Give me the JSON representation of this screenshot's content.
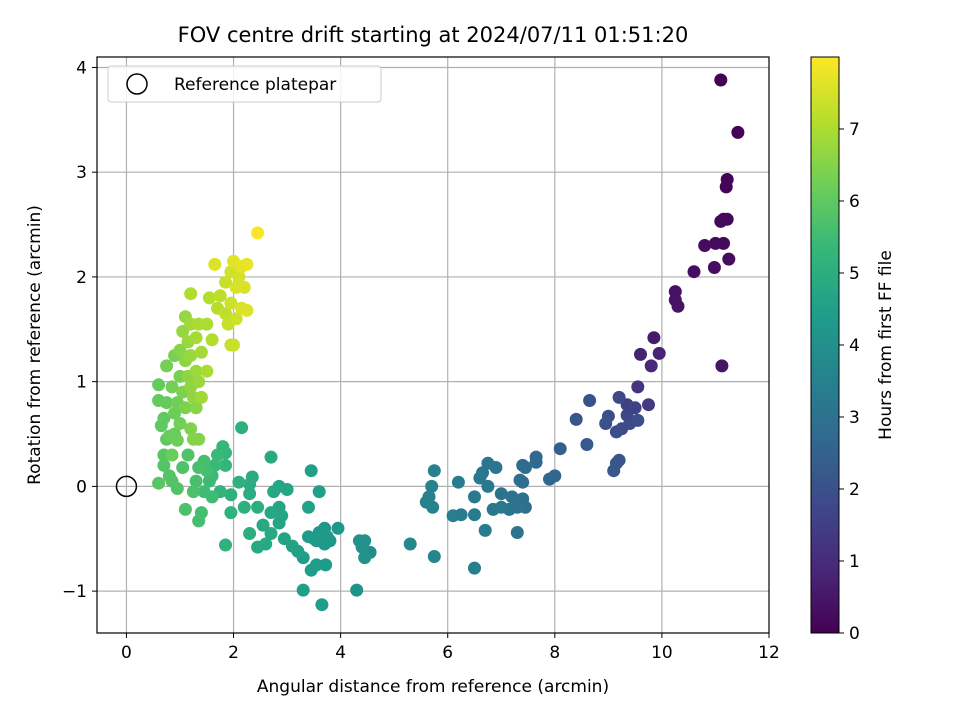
{
  "chart_data": {
    "type": "scatter",
    "title": "FOV centre drift starting at 2024/07/11 01:51:20",
    "xlabel": "Angular distance from reference (arcmin)",
    "ylabel": "Rotation from reference (arcmin)",
    "xlim": [
      -0.55,
      12.0
    ],
    "ylim": [
      -1.4,
      4.1
    ],
    "xticks": [
      0,
      2,
      4,
      6,
      8,
      10,
      12
    ],
    "xtick_labels": [
      "0",
      "2",
      "4",
      "6",
      "8",
      "10",
      "12"
    ],
    "yticks": [
      -1,
      0,
      1,
      2,
      3,
      4
    ],
    "ytick_labels": [
      "−1",
      "0",
      "1",
      "2",
      "3",
      "4"
    ],
    "grid": true,
    "legend": {
      "placement": "top-left",
      "entries": [
        {
          "label": "Reference platepar",
          "marker": "open-circle"
        }
      ]
    },
    "reference_point": {
      "x": 0,
      "y": 0
    },
    "colorbar": {
      "label": "Hours from first FF file",
      "colormap": "viridis",
      "range": [
        0,
        8.0
      ],
      "ticks": [
        0,
        1,
        2,
        3,
        4,
        5,
        6,
        7
      ],
      "tick_labels": [
        "0",
        "1",
        "2",
        "3",
        "4",
        "5",
        "6",
        "7"
      ]
    },
    "colormap_stops": [
      "#440154",
      "#482878",
      "#3e4989",
      "#31688e",
      "#26828e",
      "#1f9e89",
      "#35b779",
      "#6ece58",
      "#b5de2b",
      "#fde725"
    ],
    "points": [
      [
        11.1,
        3.88,
        0.02
      ],
      [
        11.42,
        3.38,
        0.05
      ],
      [
        11.22,
        2.93,
        0.08
      ],
      [
        11.2,
        2.86,
        0.1
      ],
      [
        11.15,
        2.55,
        0.13
      ],
      [
        11.22,
        2.55,
        0.15
      ],
      [
        11.1,
        2.53,
        0.18
      ],
      [
        11.15,
        2.32,
        0.2
      ],
      [
        11.0,
        2.32,
        0.23
      ],
      [
        10.8,
        2.3,
        0.26
      ],
      [
        11.25,
        2.17,
        0.28
      ],
      [
        10.98,
        2.09,
        0.3
      ],
      [
        10.6,
        2.05,
        0.33
      ],
      [
        10.25,
        1.86,
        0.36
      ],
      [
        10.25,
        1.78,
        0.4
      ],
      [
        10.3,
        1.72,
        0.42
      ],
      [
        11.12,
        1.15,
        0.45
      ],
      [
        9.85,
        1.42,
        0.6
      ],
      [
        9.6,
        1.26,
        0.75
      ],
      [
        9.95,
        1.27,
        0.8
      ],
      [
        9.8,
        1.15,
        0.9
      ],
      [
        9.55,
        0.95,
        1.2
      ],
      [
        9.75,
        0.78,
        1.4
      ],
      [
        9.35,
        0.78,
        1.5
      ],
      [
        9.5,
        0.75,
        1.6
      ],
      [
        9.35,
        0.68,
        1.7
      ],
      [
        9.4,
        0.6,
        1.8
      ],
      [
        9.25,
        0.55,
        1.85
      ],
      [
        9.15,
        0.52,
        1.9
      ],
      [
        9.55,
        0.63,
        1.95
      ],
      [
        9.2,
        0.85,
        1.75
      ],
      [
        9.0,
        0.67,
        1.9
      ],
      [
        8.95,
        0.6,
        2.0
      ],
      [
        8.65,
        0.82,
        2.05
      ],
      [
        8.4,
        0.64,
        2.15
      ],
      [
        8.6,
        0.4,
        2.25
      ],
      [
        9.15,
        0.22,
        2.1
      ],
      [
        9.2,
        0.25,
        2.15
      ],
      [
        9.1,
        0.15,
        2.2
      ],
      [
        8.1,
        0.36,
        2.4
      ],
      [
        8.0,
        0.1,
        2.6
      ],
      [
        7.9,
        0.07,
        2.65
      ],
      [
        7.65,
        0.28,
        2.7
      ],
      [
        7.65,
        0.23,
        2.75
      ],
      [
        7.45,
        0.18,
        2.8
      ],
      [
        7.4,
        0.2,
        2.85
      ],
      [
        7.4,
        0.04,
        2.9
      ],
      [
        7.35,
        0.06,
        2.9
      ],
      [
        7.4,
        -0.12,
        2.95
      ],
      [
        7.45,
        -0.2,
        2.95
      ],
      [
        7.3,
        -0.2,
        3.0
      ],
      [
        7.2,
        -0.1,
        3.0
      ],
      [
        7.0,
        -0.07,
        3.05
      ],
      [
        7.15,
        -0.22,
        3.05
      ],
      [
        7.3,
        -0.44,
        3.05
      ],
      [
        6.9,
        0.18,
        3.1
      ],
      [
        6.75,
        0.22,
        3.15
      ],
      [
        6.65,
        0.13,
        3.15
      ],
      [
        6.6,
        0.08,
        3.2
      ],
      [
        6.75,
        0.0,
        3.2
      ],
      [
        6.85,
        -0.22,
        3.2
      ],
      [
        7.0,
        -0.2,
        3.25
      ],
      [
        6.5,
        -0.1,
        3.25
      ],
      [
        6.5,
        -0.27,
        3.3
      ],
      [
        6.7,
        -0.42,
        3.3
      ],
      [
        6.2,
        0.04,
        3.35
      ],
      [
        6.25,
        -0.27,
        3.35
      ],
      [
        6.1,
        -0.28,
        3.4
      ],
      [
        6.5,
        -0.78,
        3.45
      ],
      [
        5.75,
        0.15,
        3.5
      ],
      [
        5.7,
        0.0,
        3.55
      ],
      [
        5.65,
        -0.1,
        3.55
      ],
      [
        5.6,
        -0.15,
        3.6
      ],
      [
        5.72,
        -0.2,
        3.6
      ],
      [
        5.75,
        -0.67,
        3.65
      ],
      [
        5.3,
        -0.55,
        3.75
      ],
      [
        4.55,
        -0.63,
        3.9
      ],
      [
        4.45,
        -0.52,
        4.0
      ],
      [
        4.35,
        -0.52,
        4.05
      ],
      [
        4.4,
        -0.58,
        4.05
      ],
      [
        4.45,
        -0.68,
        4.1
      ],
      [
        4.3,
        -0.99,
        4.1
      ],
      [
        3.95,
        -0.4,
        4.2
      ],
      [
        3.7,
        -0.4,
        4.2
      ],
      [
        3.75,
        -0.48,
        4.25
      ],
      [
        3.8,
        -0.52,
        4.25
      ],
      [
        3.6,
        -0.44,
        4.3
      ],
      [
        3.55,
        -0.52,
        4.3
      ],
      [
        3.7,
        -0.55,
        4.3
      ],
      [
        3.5,
        -0.5,
        4.35
      ],
      [
        3.4,
        -0.48,
        4.35
      ],
      [
        3.72,
        -0.75,
        4.35
      ],
      [
        3.55,
        -0.75,
        4.4
      ],
      [
        3.45,
        -0.8,
        4.4
      ],
      [
        3.65,
        -1.13,
        4.45
      ],
      [
        3.3,
        -0.68,
        4.45
      ],
      [
        3.3,
        -0.99,
        4.5
      ],
      [
        3.6,
        -0.05,
        4.5
      ],
      [
        3.45,
        0.15,
        4.5
      ],
      [
        3.4,
        -0.2,
        4.55
      ],
      [
        3.2,
        -0.62,
        4.55
      ],
      [
        3.1,
        -0.57,
        4.6
      ],
      [
        2.95,
        -0.5,
        4.65
      ],
      [
        2.85,
        -0.35,
        4.65
      ],
      [
        2.9,
        -0.28,
        4.7
      ],
      [
        2.85,
        -0.2,
        4.7
      ],
      [
        3.0,
        -0.03,
        4.7
      ],
      [
        2.85,
        0.0,
        4.7
      ],
      [
        2.75,
        -0.05,
        4.75
      ],
      [
        2.7,
        -0.25,
        4.75
      ],
      [
        2.7,
        -0.45,
        4.8
      ],
      [
        2.55,
        -0.37,
        4.8
      ],
      [
        2.6,
        -0.55,
        4.8
      ],
      [
        2.45,
        -0.58,
        4.85
      ],
      [
        2.7,
        0.28,
        4.85
      ],
      [
        2.35,
        0.09,
        4.9
      ],
      [
        2.3,
        0.02,
        4.95
      ],
      [
        2.3,
        -0.07,
        4.95
      ],
      [
        2.45,
        -0.2,
        5.0
      ],
      [
        2.3,
        -0.45,
        5.0
      ],
      [
        2.2,
        -0.2,
        5.05
      ],
      [
        2.15,
        0.56,
        5.05
      ],
      [
        2.1,
        0.04,
        5.1
      ],
      [
        1.95,
        -0.08,
        5.1
      ],
      [
        1.95,
        -0.25,
        5.15
      ],
      [
        1.85,
        -0.56,
        5.15
      ],
      [
        1.75,
        -0.05,
        5.2
      ],
      [
        1.85,
        0.2,
        5.25
      ],
      [
        1.85,
        0.32,
        5.3
      ],
      [
        1.8,
        0.38,
        5.35
      ],
      [
        1.7,
        0.3,
        5.4
      ],
      [
        1.65,
        0.2,
        5.4
      ],
      [
        1.6,
        0.1,
        5.45
      ],
      [
        1.55,
        0.05,
        5.45
      ],
      [
        1.6,
        -0.1,
        5.5
      ],
      [
        1.45,
        -0.05,
        5.5
      ],
      [
        1.5,
        0.15,
        5.55
      ],
      [
        1.45,
        0.24,
        5.6
      ],
      [
        1.4,
        -0.25,
        5.6
      ],
      [
        1.35,
        -0.33,
        5.6
      ],
      [
        1.35,
        0.18,
        5.65
      ],
      [
        1.3,
        0.05,
        5.65
      ],
      [
        1.25,
        -0.05,
        5.7
      ],
      [
        1.1,
        -0.22,
        5.7
      ],
      [
        1.15,
        0.3,
        5.75
      ],
      [
        1.05,
        0.18,
        5.75
      ],
      [
        0.95,
        -0.02,
        5.8
      ],
      [
        0.85,
        0.05,
        5.8
      ],
      [
        0.8,
        0.1,
        5.85
      ],
      [
        0.7,
        0.2,
        5.85
      ],
      [
        0.6,
        0.03,
        5.9
      ],
      [
        0.7,
        0.3,
        5.9
      ],
      [
        0.75,
        0.45,
        5.95
      ],
      [
        0.65,
        0.58,
        6.0
      ],
      [
        0.7,
        0.65,
        6.0
      ],
      [
        0.6,
        0.82,
        6.05
      ],
      [
        0.6,
        0.97,
        6.05
      ],
      [
        0.75,
        0.8,
        6.1
      ],
      [
        0.9,
        0.5,
        6.1
      ],
      [
        0.85,
        0.3,
        6.15
      ],
      [
        0.8,
        0.48,
        6.15
      ],
      [
        0.95,
        0.44,
        6.2
      ],
      [
        0.9,
        0.7,
        6.2
      ],
      [
        1.0,
        0.6,
        6.25
      ],
      [
        0.95,
        0.8,
        6.25
      ],
      [
        0.85,
        0.95,
        6.3
      ],
      [
        0.75,
        1.15,
        6.3
      ],
      [
        0.9,
        1.25,
        6.35
      ],
      [
        1.0,
        1.05,
        6.35
      ],
      [
        1.05,
        0.9,
        6.4
      ],
      [
        1.1,
        0.75,
        6.4
      ],
      [
        1.2,
        0.55,
        6.45
      ],
      [
        1.25,
        0.45,
        6.5
      ],
      [
        1.35,
        0.45,
        6.5
      ],
      [
        1.3,
        0.75,
        6.55
      ],
      [
        1.0,
        1.3,
        6.55
      ],
      [
        1.1,
        1.2,
        6.6
      ],
      [
        1.15,
        1.05,
        6.6
      ],
      [
        1.2,
        0.95,
        6.65
      ],
      [
        1.25,
        0.85,
        6.65
      ],
      [
        1.05,
        1.48,
        6.7
      ],
      [
        1.1,
        1.62,
        6.7
      ],
      [
        1.15,
        1.38,
        6.75
      ],
      [
        1.2,
        1.25,
        6.75
      ],
      [
        1.3,
        1.1,
        6.8
      ],
      [
        1.35,
        1.0,
        6.8
      ],
      [
        1.4,
        0.85,
        6.85
      ],
      [
        1.2,
        1.55,
        6.85
      ],
      [
        1.3,
        1.42,
        6.9
      ],
      [
        1.4,
        1.28,
        6.9
      ],
      [
        1.5,
        1.1,
        6.95
      ],
      [
        1.35,
        1.55,
        7.0
      ],
      [
        1.5,
        1.55,
        7.0
      ],
      [
        1.6,
        1.4,
        7.05
      ],
      [
        1.2,
        1.84,
        7.05
      ],
      [
        1.55,
        1.8,
        7.1
      ],
      [
        1.7,
        1.7,
        7.15
      ],
      [
        1.75,
        1.82,
        7.2
      ],
      [
        1.85,
        1.65,
        7.25
      ],
      [
        1.9,
        1.55,
        7.3
      ],
      [
        1.95,
        1.35,
        7.3
      ],
      [
        2.0,
        1.35,
        7.35
      ],
      [
        1.85,
        1.95,
        7.35
      ],
      [
        1.95,
        1.75,
        7.4
      ],
      [
        2.05,
        1.6,
        7.4
      ],
      [
        1.95,
        2.05,
        7.45
      ],
      [
        2.05,
        1.9,
        7.5
      ],
      [
        2.1,
        2.0,
        7.5
      ],
      [
        2.2,
        1.9,
        7.55
      ],
      [
        2.15,
        1.7,
        7.55
      ],
      [
        2.25,
        1.68,
        7.6
      ],
      [
        1.65,
        2.12,
        7.6
      ],
      [
        2.0,
        2.15,
        7.65
      ],
      [
        2.15,
        2.1,
        7.7
      ],
      [
        2.25,
        2.12,
        7.75
      ],
      [
        2.45,
        2.42,
        7.95
      ]
    ]
  }
}
